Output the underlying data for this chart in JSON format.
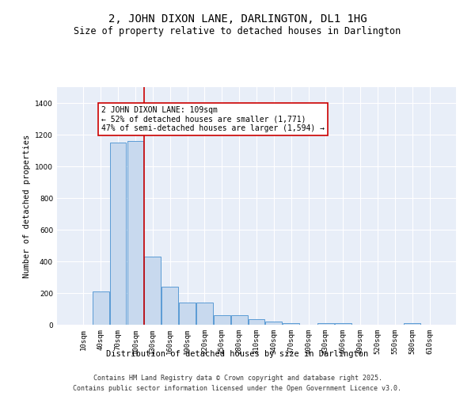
{
  "title": "2, JOHN DIXON LANE, DARLINGTON, DL1 1HG",
  "subtitle": "Size of property relative to detached houses in Darlington",
  "xlabel": "Distribution of detached houses by size in Darlington",
  "ylabel": "Number of detached properties",
  "bar_categories": [
    "10sqm",
    "40sqm",
    "70sqm",
    "100sqm",
    "130sqm",
    "160sqm",
    "190sqm",
    "220sqm",
    "250sqm",
    "280sqm",
    "310sqm",
    "340sqm",
    "370sqm",
    "400sqm",
    "430sqm",
    "460sqm",
    "490sqm",
    "520sqm",
    "550sqm",
    "580sqm",
    "610sqm"
  ],
  "bar_values": [
    0,
    210,
    1150,
    1160,
    430,
    240,
    140,
    140,
    60,
    60,
    35,
    22,
    12,
    0,
    12,
    12,
    0,
    0,
    0,
    12,
    0
  ],
  "bar_color": "#c8d9ee",
  "bar_edge_color": "#5b9bd5",
  "red_line_x": 3.5,
  "red_line_color": "#cc0000",
  "annotation_text": "2 JOHN DIXON LANE: 109sqm\n← 52% of detached houses are smaller (1,771)\n47% of semi-detached houses are larger (1,594) →",
  "annotation_box_color": "#ffffff",
  "annotation_box_edge": "#cc0000",
  "ylim": [
    0,
    1500
  ],
  "yticks": [
    0,
    200,
    400,
    600,
    800,
    1000,
    1200,
    1400
  ],
  "footer_line1": "Contains HM Land Registry data © Crown copyright and database right 2025.",
  "footer_line2": "Contains public sector information licensed under the Open Government Licence v3.0.",
  "fig_bg_color": "#ffffff",
  "plot_bg_color": "#e8eef8",
  "grid_color": "#ffffff",
  "title_fontsize": 10,
  "subtitle_fontsize": 8.5,
  "axis_label_fontsize": 7.5,
  "tick_fontsize": 6.5,
  "annotation_fontsize": 7,
  "footer_fontsize": 6
}
